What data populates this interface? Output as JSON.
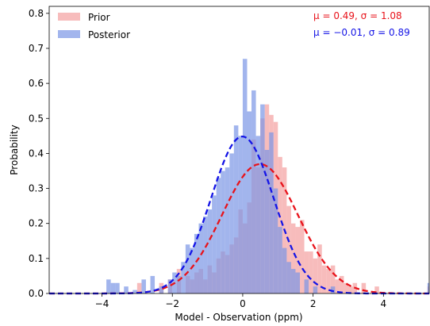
{
  "chart_data": {
    "type": "bar",
    "subtype": "histogram",
    "xlabel": "Model - Observation (ppm)",
    "ylabel": "Probability",
    "xlim": [
      -5.5,
      5.3
    ],
    "ylim": [
      0,
      0.82
    ],
    "xticks": [
      -4,
      -2,
      0,
      2,
      4
    ],
    "xtick_labels": [
      "−4",
      "−2",
      "0",
      "2",
      "4"
    ],
    "yticks": [
      0.0,
      0.1,
      0.2,
      0.3,
      0.4,
      0.5,
      0.6,
      0.7,
      0.8
    ],
    "ytick_labels": [
      "0.0",
      "0.1",
      "0.2",
      "0.3",
      "0.4",
      "0.5",
      "0.6",
      "0.7",
      "0.8"
    ],
    "grid": false,
    "legend_position": "top-left",
    "bin_width": 0.125,
    "series": [
      {
        "name": "Prior",
        "color": "#f4a6a6",
        "opacity": 0.75,
        "bins": [
          [
            -3.0,
            0.03
          ],
          [
            -2.375,
            0.03
          ],
          [
            -2.125,
            0.04
          ],
          [
            -1.875,
            0.07
          ],
          [
            -1.625,
            0.05
          ],
          [
            -1.5,
            0.04
          ],
          [
            -1.375,
            0.06
          ],
          [
            -1.25,
            0.07
          ],
          [
            -1.125,
            0.04
          ],
          [
            -1.0,
            0.08
          ],
          [
            -0.875,
            0.06
          ],
          [
            -0.75,
            0.1
          ],
          [
            -0.625,
            0.12
          ],
          [
            -0.5,
            0.11
          ],
          [
            -0.375,
            0.14
          ],
          [
            -0.25,
            0.16
          ],
          [
            -0.125,
            0.24
          ],
          [
            0.0,
            0.2
          ],
          [
            0.125,
            0.26
          ],
          [
            0.25,
            0.44
          ],
          [
            0.375,
            0.36
          ],
          [
            0.5,
            0.5
          ],
          [
            0.625,
            0.54
          ],
          [
            0.75,
            0.51
          ],
          [
            0.875,
            0.49
          ],
          [
            1.0,
            0.39
          ],
          [
            1.125,
            0.36
          ],
          [
            1.25,
            0.25
          ],
          [
            1.375,
            0.2
          ],
          [
            1.5,
            0.19
          ],
          [
            1.625,
            0.21
          ],
          [
            1.75,
            0.12
          ],
          [
            1.875,
            0.12
          ],
          [
            2.0,
            0.1
          ],
          [
            2.125,
            0.14
          ],
          [
            2.25,
            0.08
          ],
          [
            2.375,
            0.07
          ],
          [
            2.5,
            0.08
          ],
          [
            2.625,
            0.04
          ],
          [
            2.75,
            0.05
          ],
          [
            2.875,
            0.03
          ],
          [
            3.0,
            0.02
          ],
          [
            3.125,
            0.03
          ],
          [
            3.375,
            0.03
          ],
          [
            3.75,
            0.02
          ],
          [
            5.25,
            0.02
          ]
        ]
      },
      {
        "name": "Posterior",
        "color": "#7b96e6",
        "opacity": 0.7,
        "bins": [
          [
            -3.875,
            0.04
          ],
          [
            -3.75,
            0.03
          ],
          [
            -3.625,
            0.03
          ],
          [
            -3.375,
            0.02
          ],
          [
            -3.125,
            0.01
          ],
          [
            -2.875,
            0.04
          ],
          [
            -2.625,
            0.05
          ],
          [
            -2.375,
            0.02
          ],
          [
            -2.125,
            0.04
          ],
          [
            -2.0,
            0.06
          ],
          [
            -1.875,
            0.05
          ],
          [
            -1.75,
            0.09
          ],
          [
            -1.625,
            0.14
          ],
          [
            -1.5,
            0.13
          ],
          [
            -1.375,
            0.17
          ],
          [
            -1.25,
            0.2
          ],
          [
            -1.125,
            0.22
          ],
          [
            -1.0,
            0.24
          ],
          [
            -0.875,
            0.28
          ],
          [
            -0.75,
            0.33
          ],
          [
            -0.625,
            0.35
          ],
          [
            -0.5,
            0.36
          ],
          [
            -0.375,
            0.4
          ],
          [
            -0.25,
            0.48
          ],
          [
            -0.125,
            0.45
          ],
          [
            0.0,
            0.67
          ],
          [
            0.125,
            0.52
          ],
          [
            0.25,
            0.58
          ],
          [
            0.375,
            0.45
          ],
          [
            0.5,
            0.54
          ],
          [
            0.625,
            0.41
          ],
          [
            0.75,
            0.46
          ],
          [
            0.875,
            0.3
          ],
          [
            1.0,
            0.19
          ],
          [
            1.125,
            0.13
          ],
          [
            1.25,
            0.09
          ],
          [
            1.375,
            0.07
          ],
          [
            1.5,
            0.06
          ],
          [
            1.75,
            0.04
          ],
          [
            2.0,
            0.02
          ],
          [
            2.5,
            0.02
          ],
          [
            5.25,
            0.03
          ]
        ]
      }
    ],
    "fits": [
      {
        "name": "Prior fit",
        "mu": 0.49,
        "sigma": 1.08,
        "color": "#e8131b",
        "label": "μ = 0.49,  σ = 1.08"
      },
      {
        "name": "Posterior fit",
        "mu": -0.01,
        "sigma": 0.89,
        "color": "#1414e6",
        "label": "μ = −0.01,  σ = 0.89"
      }
    ]
  }
}
